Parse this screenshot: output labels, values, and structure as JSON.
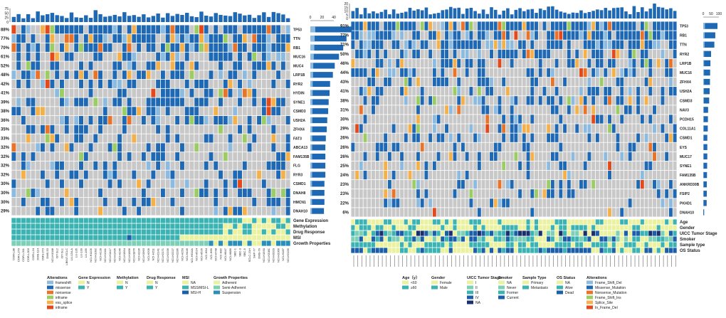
{
  "chart_data": [
    {
      "type": "heatmap",
      "title": "",
      "tmb_axis_ticks": [
        "75",
        "50",
        "25",
        "0"
      ],
      "freq_axis_ticks": [
        "0",
        "20",
        "40"
      ],
      "sample_count": 58,
      "rows": [
        {
          "gene": "TP53",
          "pct": "88%",
          "freq": 88
        },
        {
          "gene": "TTN",
          "pct": "77%",
          "freq": 77
        },
        {
          "gene": "RB1",
          "pct": "70%",
          "freq": 70
        },
        {
          "gene": "MUC16",
          "pct": "61%",
          "freq": 61
        },
        {
          "gene": "MUC4",
          "pct": "52%",
          "freq": 52
        },
        {
          "gene": "LRP1B",
          "pct": "48%",
          "freq": 48
        },
        {
          "gene": "RYR2",
          "pct": "42%",
          "freq": 42
        },
        {
          "gene": "HYDIN",
          "pct": "41%",
          "freq": 41
        },
        {
          "gene": "SYNE1",
          "pct": "39%",
          "freq": 39
        },
        {
          "gene": "CSMD3",
          "pct": "38%",
          "freq": 38
        },
        {
          "gene": "USH2A",
          "pct": "36%",
          "freq": 36
        },
        {
          "gene": "ZFHX4",
          "pct": "35%",
          "freq": 35
        },
        {
          "gene": "FAT3",
          "pct": "33%",
          "freq": 33
        },
        {
          "gene": "ABCA13",
          "pct": "32%",
          "freq": 32
        },
        {
          "gene": "FAM135B",
          "pct": "32%",
          "freq": 32
        },
        {
          "gene": "FLG",
          "pct": "32%",
          "freq": 32
        },
        {
          "gene": "RYR3",
          "pct": "32%",
          "freq": 32
        },
        {
          "gene": "CSMD1",
          "pct": "30%",
          "freq": 30
        },
        {
          "gene": "DNAH8",
          "pct": "30%",
          "freq": 30
        },
        {
          "gene": "HMCN1",
          "pct": "30%",
          "freq": 30
        },
        {
          "gene": "DNAH10",
          "pct": "29%",
          "freq": 29
        }
      ],
      "annotation_tracks": [
        "Gene Expression",
        "Methylation",
        "Drug Response",
        "MSI",
        "Growth Properties"
      ],
      "sample_labels": [
        "COR-L88",
        "COR-L279",
        "COR-L311",
        "COR-L303",
        "COR-L24",
        "DMS-114",
        "DMS-273",
        "DMS-53",
        "NCI-H1048",
        "IST-SL2",
        "IST-SL1",
        "LB647-SCLC",
        "LU-134-A",
        "LU-135",
        "LU-139",
        "LU-165",
        "NCI-H1105",
        "NCI-H1092",
        "NCI-H128",
        "NCI-H1341",
        "NCI-H1417",
        "NCI-H1436",
        "NCI-H146",
        "NCI-H1694",
        "NCI-H1836",
        "NCI-H1876",
        "NCI-H196",
        "NCI-H1963",
        "NCI-H209",
        "NCI-H211",
        "NCI-H2141",
        "NCI-H2171",
        "NCI-H2196",
        "NCI-H2227",
        "NCI-H2286",
        "NCI-H250",
        "NCI-H446",
        "NCI-H510A",
        "NCI-H524",
        "NCI-H526",
        "NCI-H64",
        "NCI-H69",
        "NCI-H748",
        "NCI-H82",
        "NCI-H847",
        "NCI-H889",
        "SBC-1",
        "SBC-3",
        "SBC-5",
        "SCLC-21H",
        "SHP-77",
        "DMS-79",
        "NCI-H1930",
        "NCI-H2081",
        "NCI-H2029",
        "NCI-H2066",
        "NCI-H187",
        "NCI-H2195"
      ],
      "legend": {
        "alterations": {
          "title": "Alterations",
          "items": [
            {
              "label": "frameshift",
              "color": "#8dbbe0"
            },
            {
              "label": "missense",
              "color": "#1f68b3"
            },
            {
              "label": "nonsense",
              "color": "#e7742a"
            },
            {
              "label": "inframe",
              "color": "#9ccc65"
            },
            {
              "label": "ess_splice",
              "color": "#f4b04a"
            },
            {
              "label": "inframe",
              "color": "#e34a1b"
            }
          ]
        },
        "gene_expression": {
          "title": "Gene Expression",
          "items": [
            {
              "label": "N",
              "color": "#ebf29f"
            },
            {
              "label": "Y",
              "color": "#3bb3b3"
            }
          ]
        },
        "methylation": {
          "title": "Methylation",
          "items": [
            {
              "label": "N",
              "color": "#ebf29f"
            },
            {
              "label": "Y",
              "color": "#3bb3b3"
            }
          ]
        },
        "drug_response": {
          "title": "Drug Response",
          "items": [
            {
              "label": "N",
              "color": "#ebf29f"
            },
            {
              "label": "Y",
              "color": "#3bb3b3"
            }
          ]
        },
        "msi": {
          "title": "MSI",
          "items": [
            {
              "label": "NA",
              "color": "#ebf29f"
            },
            {
              "label": "MSS/MSI-L",
              "color": "#3bb3b3"
            },
            {
              "label": "MSI-H",
              "color": "#1c5fa8"
            }
          ]
        },
        "growth": {
          "title": "Growth Properties",
          "items": [
            {
              "label": "Adherent",
              "color": "#ebf29f"
            },
            {
              "label": "Semi-Adherent",
              "color": "#7dcfb6"
            },
            {
              "label": "Suspension",
              "color": "#2a8fb8"
            }
          ]
        }
      }
    },
    {
      "type": "heatmap",
      "title": "",
      "tmb_axis_ticks": [
        "20",
        "15",
        "10",
        "5",
        "0"
      ],
      "freq_axis_ticks": [
        "0",
        "50",
        "100"
      ],
      "sample_count": 80,
      "rows": [
        {
          "gene": "TP53",
          "pct": "91%",
          "freq": 91
        },
        {
          "gene": "RB1",
          "pct": "77%",
          "freq": 77
        },
        {
          "gene": "TTN",
          "pct": "71%",
          "freq": 71
        },
        {
          "gene": "RYR2",
          "pct": "50%",
          "freq": 50
        },
        {
          "gene": "LRP1B",
          "pct": "46%",
          "freq": 46
        },
        {
          "gene": "MUC16",
          "pct": "44%",
          "freq": 44
        },
        {
          "gene": "ZFHX4",
          "pct": "43%",
          "freq": 43
        },
        {
          "gene": "USH2A",
          "pct": "41%",
          "freq": 41
        },
        {
          "gene": "CSMD3",
          "pct": "38%",
          "freq": 38
        },
        {
          "gene": "NAV3",
          "pct": "31%",
          "freq": 31
        },
        {
          "gene": "PCDH15",
          "pct": "30%",
          "freq": 30
        },
        {
          "gene": "COL11A1",
          "pct": "29%",
          "freq": 29
        },
        {
          "gene": "CSMD1",
          "pct": "26%",
          "freq": 26
        },
        {
          "gene": "EYS",
          "pct": "26%",
          "freq": 26
        },
        {
          "gene": "MUC17",
          "pct": "26%",
          "freq": 26
        },
        {
          "gene": "SYNE1",
          "pct": "25%",
          "freq": 25
        },
        {
          "gene": "FAM135B",
          "pct": "24%",
          "freq": 24
        },
        {
          "gene": "ANKRD30B",
          "pct": "23%",
          "freq": 23
        },
        {
          "gene": "FSIP2",
          "pct": "23%",
          "freq": 23
        },
        {
          "gene": "PKHD1",
          "pct": "22%",
          "freq": 22
        },
        {
          "gene": "DNAH10",
          "pct": "6%",
          "freq": 6
        }
      ],
      "annotation_tracks": [
        "Age",
        "Gender",
        "UICC Tumor Stage",
        "Smoker",
        "Sample type",
        "OS Status"
      ],
      "legend": {
        "age": {
          "title": "Age（y）",
          "items": [
            {
              "label": "<60",
              "color": "#ebf29f"
            },
            {
              "label": "≥60",
              "color": "#3bb3b3"
            }
          ]
        },
        "gender": {
          "title": "Gender",
          "items": [
            {
              "label": "Female",
              "color": "#ebf29f"
            },
            {
              "label": "Male",
              "color": "#3bb3b3"
            }
          ]
        },
        "stage": {
          "title": "UICC Tumor Stage",
          "items": [
            {
              "label": "I",
              "color": "#ebf29f"
            },
            {
              "label": "II",
              "color": "#7dcfb6"
            },
            {
              "label": "III",
              "color": "#3bb3b3"
            },
            {
              "label": "IV",
              "color": "#1c5fa8"
            },
            {
              "label": "NA",
              "color": "#1a2f6b"
            }
          ]
        },
        "smoker": {
          "title": "Smoker",
          "items": [
            {
              "label": "NA",
              "color": "#ebf29f"
            },
            {
              "label": "Never",
              "color": "#7dcfb6"
            },
            {
              "label": "Former",
              "color": "#3bb3b3"
            },
            {
              "label": "Current",
              "color": "#1c5fa8"
            }
          ]
        },
        "sample_type": {
          "title": "Sample Type",
          "items": [
            {
              "label": "Primary",
              "color": "#ebf29f"
            },
            {
              "label": "Metastasis",
              "color": "#3bb3b3"
            }
          ]
        },
        "os": {
          "title": "OS Status",
          "items": [
            {
              "label": "NA",
              "color": "#ebf29f"
            },
            {
              "label": "Alive",
              "color": "#3bb3b3"
            },
            {
              "label": "Dead",
              "color": "#1c5fa8"
            }
          ]
        },
        "alterations": {
          "title": "Alterations",
          "items": [
            {
              "label": "Frame_Shift_Del",
              "color": "#8dbbe0"
            },
            {
              "label": "Missense_Mutation",
              "color": "#1f68b3"
            },
            {
              "label": "Nonsense_Mutation",
              "color": "#e7742a"
            },
            {
              "label": "Frame_Shift_Ins",
              "color": "#9ccc65"
            },
            {
              "label": "Splice_Site",
              "color": "#f4b04a"
            },
            {
              "label": "In_Frame_Del",
              "color": "#e34a1b"
            }
          ]
        }
      }
    }
  ]
}
